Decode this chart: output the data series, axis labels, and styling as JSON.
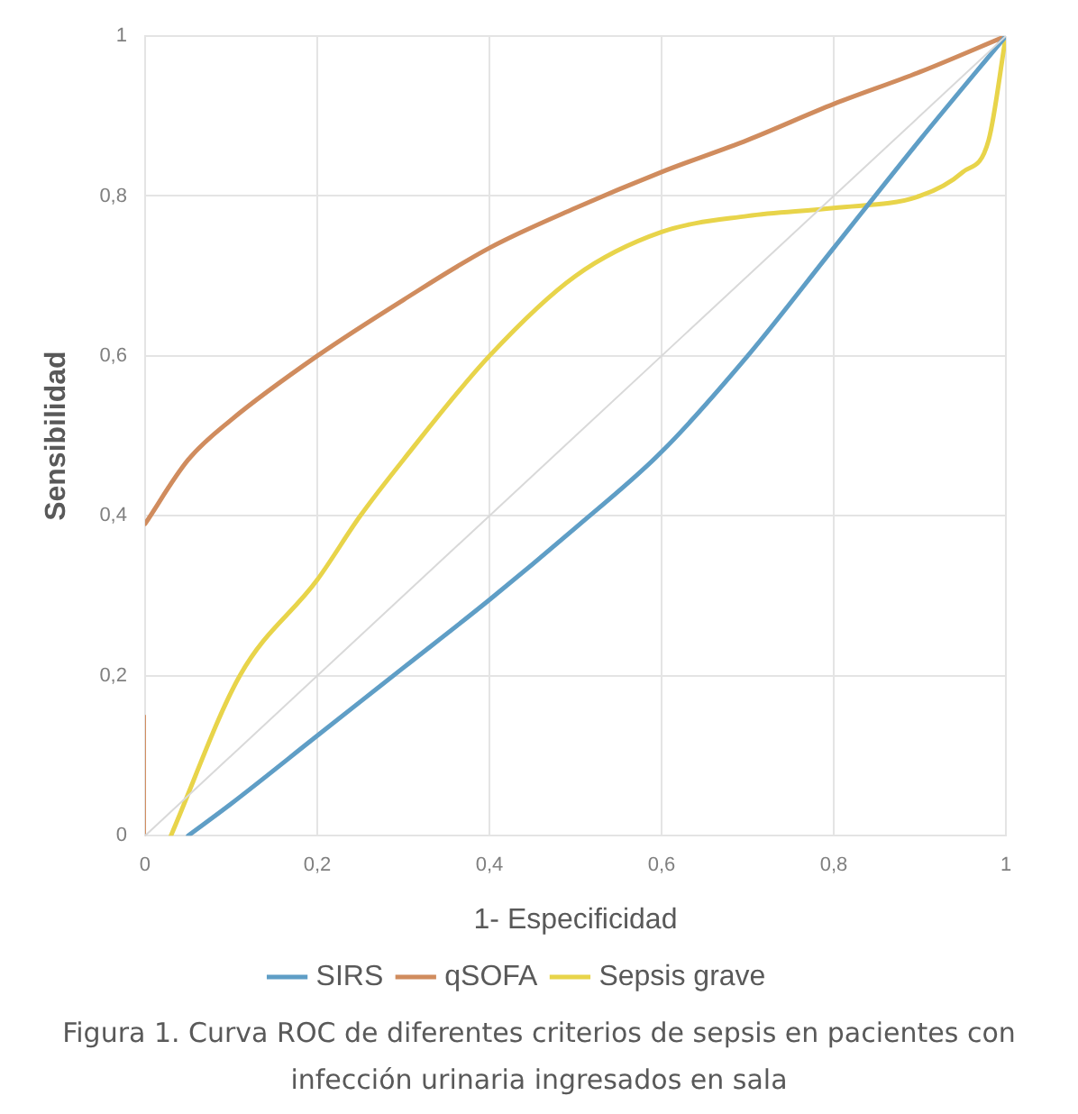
{
  "chart_data": {
    "type": "line",
    "xlabel": "1- Especificidad",
    "ylabel": "Sensibilidad",
    "xlim": [
      0,
      1
    ],
    "ylim": [
      0,
      1
    ],
    "xticks": [
      0,
      {
        "value": 0.2,
        "label": "0,2"
      },
      {
        "value": 0.4,
        "label": "0,4"
      },
      {
        "value": 0.6,
        "label": "0,6"
      },
      {
        "value": 0.8,
        "label": "0,8"
      },
      1
    ],
    "yticks": [
      0,
      {
        "value": 0.2,
        "label": "0,2"
      },
      {
        "value": 0.4,
        "label": "0,4"
      },
      {
        "value": 0.6,
        "label": "0,6"
      },
      {
        "value": 0.8,
        "label": "0,8"
      },
      1
    ],
    "grid": true,
    "legend": "bottom",
    "marker": "none",
    "line_style": "solid",
    "series": [
      {
        "color": "#d9d9d9",
        "x": [
          0,
          1
        ],
        "values": [
          0,
          1
        ]
      },
      {
        "name": "SIRS",
        "color": "#5f9ec6",
        "x": [
          0.05,
          0.1,
          0.2,
          0.3,
          0.4,
          0.5,
          0.6,
          0.7,
          0.8,
          0.9,
          1
        ],
        "values": [
          0,
          0.04,
          0.125,
          0.21,
          0.295,
          0.385,
          0.48,
          0.6,
          0.735,
          0.87,
          1
        ]
      },
      {
        "color": "#d08c5e",
        "x": [
          0,
          0
        ],
        "values": [
          0,
          0.15
        ]
      },
      {
        "name": "qSOFA",
        "color": "#d08c5e",
        "x": [
          0,
          0.05,
          0.1,
          0.2,
          0.3,
          0.4,
          0.5,
          0.6,
          0.7,
          0.8,
          0.9,
          1
        ],
        "values": [
          0.39,
          0.47,
          0.52,
          0.6,
          0.67,
          0.735,
          0.785,
          0.83,
          0.87,
          0.915,
          0.955,
          1
        ]
      },
      {
        "name": "Sepsis grave",
        "color": "#e8d44a",
        "x": [
          0.03,
          0.11,
          0.2,
          0.25,
          0.3,
          0.4,
          0.5,
          0.6,
          0.7,
          0.8,
          0.9,
          0.95,
          0.98,
          1
        ],
        "values": [
          0,
          0.2,
          0.32,
          0.4,
          0.47,
          0.6,
          0.7,
          0.755,
          0.775,
          0.785,
          0.8,
          0.83,
          0.87,
          1
        ]
      }
    ],
    "annotations": [
      "Figura 1. Curva ROC de diferentes criterios de sepsis en pacientes con infección urinaria ingresados en sala"
    ]
  }
}
